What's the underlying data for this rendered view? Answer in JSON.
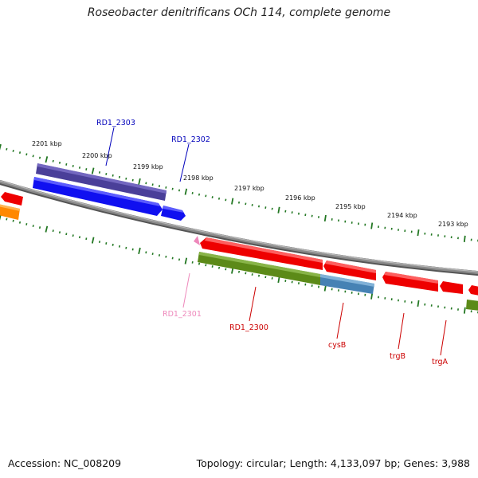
{
  "title": "Roseobacter denitrificans OCh 114, complete genome",
  "footer": {
    "accession": "Accession: NC_008209",
    "summary": "Topology: circular; Length: 4,133,097 bp; Genes: 3,988"
  },
  "ruler": {
    "labels": [
      "2201 kbp",
      "2200 kbp",
      "2199 kbp",
      "2198 kbp",
      "2197 kbp",
      "2196 kbp",
      "2195 kbp",
      "2194 kbp",
      "2193 kbp"
    ]
  },
  "genes": [
    {
      "label": "RD1_2303",
      "color": "#0000bb"
    },
    {
      "label": "RD1_2302",
      "color": "#0000bb"
    },
    {
      "label": "RD1_2301",
      "color": "#ee88bb"
    },
    {
      "label": "RD1_2300",
      "color": "#cc0000"
    },
    {
      "label": "cysB",
      "color": "#cc0000"
    },
    {
      "label": "trgB",
      "color": "#cc0000"
    },
    {
      "label": "trgA",
      "color": "#cc0000"
    }
  ],
  "colors": {
    "backbone": "#888888",
    "tick": "#227722",
    "blue_gene": "#1010f0",
    "purple_feature": "#4a3f99",
    "red_gene": "#ee0000",
    "green_feature": "#5c8a18",
    "steel_feature": "#4682b4",
    "orange_feature": "#ff8800",
    "pink_gene": "#ee88bb"
  }
}
